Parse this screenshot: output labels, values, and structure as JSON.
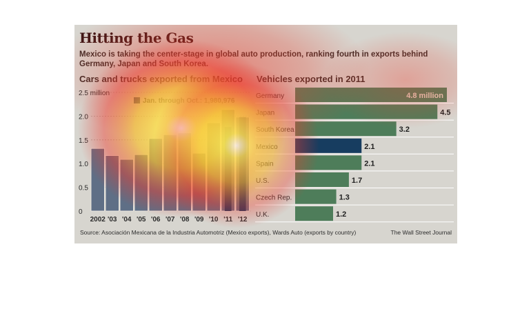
{
  "header": {
    "title": "Hitting the Gas",
    "subtitle": "Mexico is taking the center-stage in global auto production, ranking fourth in exports behind Germany, Japan and South Korea."
  },
  "chart_data": [
    {
      "type": "bar",
      "title": "Cars and trucks exported from Mexico",
      "categories": [
        "2002",
        "'03",
        "'04",
        "'05",
        "'06",
        "'07",
        "'08",
        "'09",
        "'10",
        "'11",
        "'12"
      ],
      "values": [
        1.32,
        1.17,
        1.09,
        1.19,
        1.53,
        1.61,
        1.65,
        1.22,
        1.86,
        2.14,
        1.98
      ],
      "y_ticks": [
        "0",
        "0.5",
        "1.0",
        "1.5",
        "2.0",
        "2.5 million"
      ],
      "ylim": [
        0,
        2.5
      ],
      "legend": "Jan. through Oct.: 1,980,976",
      "partial_year_values": [
        1.77,
        1.98
      ],
      "colors": {
        "bar": "#5f6f86",
        "bar_stroke": "#e9e6df",
        "partial": "#15385f"
      }
    },
    {
      "type": "bar",
      "orientation": "horizontal",
      "title": "Vehicles exported in 2011",
      "categories": [
        "Germany",
        "Japan",
        "South Korea",
        "Mexico",
        "Spain",
        "U.S.",
        "Czech Rep.",
        "U.K."
      ],
      "values": [
        4.8,
        4.5,
        3.2,
        2.1,
        2.1,
        1.7,
        1.3,
        1.2
      ],
      "value_labels": [
        "4.8 million",
        "4.5",
        "3.2",
        "2.1",
        "2.1",
        "1.7",
        "1.3",
        "1.2"
      ],
      "xlim": [
        0,
        4.8
      ],
      "colors": {
        "bar": "#4e7d5a",
        "highlight": "#173d60",
        "highlight_label": "Mexico"
      }
    }
  ],
  "footer": {
    "source": "Source:  Asociación Mexicana de la Industria Automotriz (Mexico exports), Wards Auto (exports by country)",
    "credit": "The Wall Street Journal"
  }
}
